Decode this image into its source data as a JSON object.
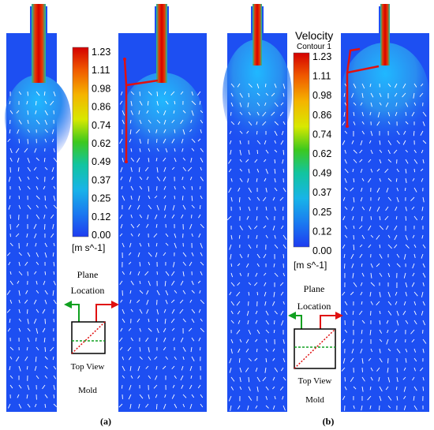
{
  "panels": [
    {
      "id": "a",
      "caption": "(a)",
      "legend_title": "",
      "legend_subtitle": "",
      "units": "[m s^-1]",
      "plane_label_1": "Plane",
      "plane_label_2": "Location",
      "top_view_label": "Top View",
      "mold_label": "Mold"
    },
    {
      "id": "b",
      "caption": "(b)",
      "legend_title": "Velocity",
      "legend_subtitle": "Contour 1",
      "units": "[m s^-1]",
      "plane_label_1": "Plane",
      "plane_label_2": "Location",
      "top_view_label": "Top View",
      "mold_label": "Mold"
    }
  ],
  "colorbar": {
    "ticks": [
      "1.23",
      "1.11",
      "0.98",
      "0.86",
      "0.74",
      "0.62",
      "0.49",
      "0.37",
      "0.25",
      "0.12",
      "0.00"
    ],
    "colors": [
      "#d40000",
      "#e83a00",
      "#f07a00",
      "#f0b400",
      "#e6e600",
      "#9ad400",
      "#3cbf1e",
      "#12c4a0",
      "#18a6e8",
      "#1a78f0",
      "#1e46f0"
    ]
  },
  "colors": {
    "field": "#1d4ff2",
    "jet_hot": "#d80000",
    "arrow": "#ffffff",
    "red_path": "#e01010",
    "green_path": "#10a020"
  }
}
